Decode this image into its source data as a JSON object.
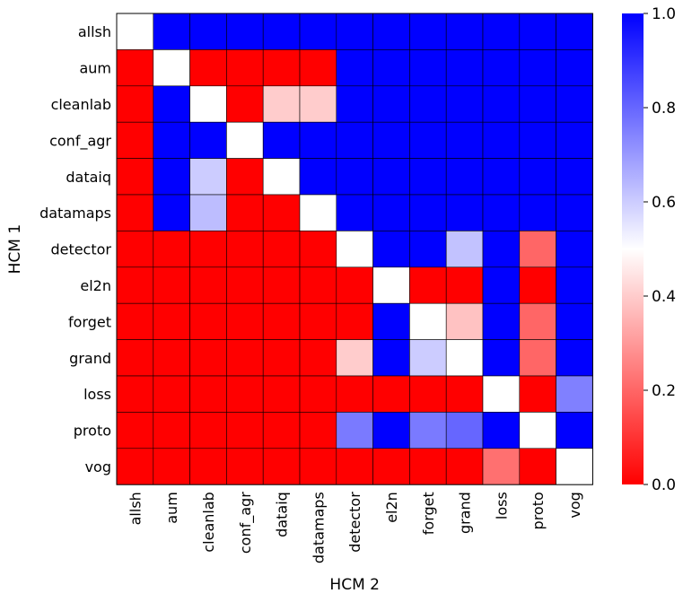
{
  "chart_data": {
    "type": "heatmap",
    "title": "",
    "xlabel": "HCM 2",
    "ylabel": "HCM 1",
    "rows": [
      "allsh",
      "aum",
      "cleanlab",
      "conf_agr",
      "dataiq",
      "datamaps",
      "detector",
      "el2n",
      "forget",
      "grand",
      "loss",
      "proto",
      "vog"
    ],
    "cols": [
      "allsh",
      "aum",
      "cleanlab",
      "conf_agr",
      "dataiq",
      "datamaps",
      "detector",
      "el2n",
      "forget",
      "grand",
      "loss",
      "proto",
      "vog"
    ],
    "values": [
      [
        0.5,
        1.0,
        1.0,
        1.0,
        1.0,
        1.0,
        1.0,
        1.0,
        1.0,
        1.0,
        1.0,
        1.0,
        1.0
      ],
      [
        0.0,
        0.5,
        0.0,
        0.0,
        0.0,
        0.0,
        1.0,
        1.0,
        1.0,
        1.0,
        1.0,
        1.0,
        1.0
      ],
      [
        0.0,
        1.0,
        0.5,
        0.0,
        0.4,
        0.4,
        1.0,
        1.0,
        1.0,
        1.0,
        1.0,
        1.0,
        1.0
      ],
      [
        0.0,
        1.0,
        1.0,
        0.5,
        1.0,
        1.0,
        1.0,
        1.0,
        1.0,
        1.0,
        1.0,
        1.0,
        1.0
      ],
      [
        0.0,
        1.0,
        0.6,
        0.0,
        0.5,
        1.0,
        1.0,
        1.0,
        1.0,
        1.0,
        1.0,
        1.0,
        1.0
      ],
      [
        0.0,
        1.0,
        0.63,
        0.0,
        0.0,
        0.5,
        1.0,
        1.0,
        1.0,
        1.0,
        1.0,
        1.0,
        1.0
      ],
      [
        0.0,
        0.0,
        0.0,
        0.0,
        0.0,
        0.0,
        0.5,
        1.0,
        1.0,
        0.62,
        1.0,
        0.2,
        1.0
      ],
      [
        0.0,
        0.0,
        0.0,
        0.0,
        0.0,
        0.0,
        0.0,
        0.5,
        0.0,
        0.0,
        1.0,
        0.0,
        1.0
      ],
      [
        0.0,
        0.0,
        0.0,
        0.0,
        0.0,
        0.0,
        0.0,
        1.0,
        0.5,
        0.38,
        1.0,
        0.2,
        1.0
      ],
      [
        0.0,
        0.0,
        0.0,
        0.0,
        0.0,
        0.0,
        0.4,
        1.0,
        0.6,
        0.5,
        1.0,
        0.2,
        1.0
      ],
      [
        0.0,
        0.0,
        0.0,
        0.0,
        0.0,
        0.0,
        0.0,
        0.0,
        0.0,
        0.0,
        0.5,
        0.0,
        0.75
      ],
      [
        0.0,
        0.0,
        0.0,
        0.0,
        0.0,
        0.0,
        0.76,
        1.0,
        0.76,
        0.8,
        1.0,
        0.5,
        1.0
      ],
      [
        0.0,
        0.0,
        0.0,
        0.0,
        0.0,
        0.0,
        0.0,
        0.0,
        0.0,
        0.0,
        0.22,
        0.0,
        0.5
      ]
    ],
    "colorbar": {
      "range": [
        0.0,
        1.0
      ],
      "ticks": [
        0.0,
        0.2,
        0.4,
        0.6,
        0.8,
        1.0
      ],
      "tick_labels": [
        "0.0",
        "0.2",
        "0.4",
        "0.6",
        "0.8",
        "1.0"
      ],
      "colormap": "bwr_r",
      "low_color": "#ff0000",
      "mid_color": "#ffffff",
      "high_color": "#0000ff"
    }
  }
}
